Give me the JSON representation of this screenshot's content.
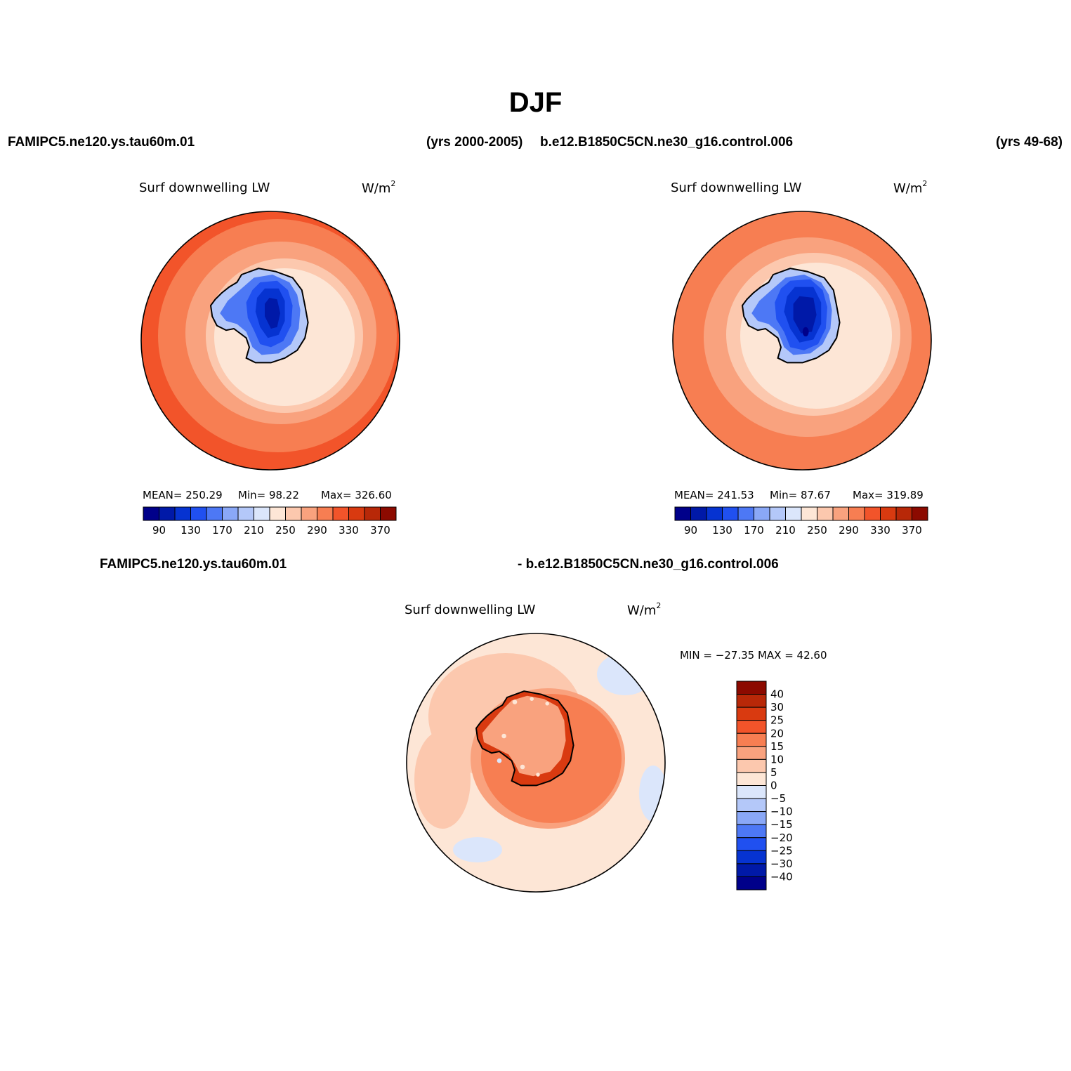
{
  "title": "DJF",
  "headers": {
    "case1": "FAMIPC5.ne120.ys.tau60m.01",
    "case1_years": "(yrs 2000-2005)",
    "case2": "b.e12.B1850C5CN.ne30_g16.control.006",
    "case2_years": "(yrs 49-68)",
    "diff_left": "FAMIPC5.ne120.ys.tau60m.01",
    "diff_right": "- b.e12.B1850C5CN.ne30_g16.control.006"
  },
  "panels": {
    "left": {
      "variable": "Surf downwelling LW",
      "units_base": "W/m",
      "units_exp": "2",
      "mean": "MEAN= 250.29",
      "min": "Min=  98.22",
      "max": "Max= 326.60"
    },
    "right": {
      "variable": "Surf downwelling LW",
      "units_base": "W/m",
      "units_exp": "2",
      "mean": "MEAN= 241.53",
      "min": "Min=  87.67",
      "max": "Max= 319.89"
    },
    "diff": {
      "variable": "Surf downwelling LW",
      "units_base": "W/m",
      "units_exp": "2",
      "minmax": "MIN = −27.35 MAX =  42.60"
    }
  },
  "colorbar_main": {
    "colors": [
      "#00008a",
      "#0019a8",
      "#0633d1",
      "#2050f0",
      "#4d78f5",
      "#8aa8f7",
      "#b4c8f9",
      "#dbe6fb",
      "#fde6d6",
      "#fcc8ae",
      "#f9a27e",
      "#f77e52",
      "#f2542a",
      "#d93a10",
      "#b82808",
      "#8c0a00"
    ],
    "labels": [
      "90",
      "130",
      "170",
      "210",
      "250",
      "290",
      "330",
      "370"
    ]
  },
  "colorbar_diff": {
    "colors": [
      "#8c0a00",
      "#b82808",
      "#d93a10",
      "#f2542a",
      "#f77e52",
      "#f9a27e",
      "#fcc8ae",
      "#fde6d6",
      "#dbe6fb",
      "#b4c8f9",
      "#8aa8f7",
      "#4d78f5",
      "#2050f0",
      "#0633d1",
      "#0019a8",
      "#00008a"
    ],
    "labels": [
      "40",
      "30",
      "25",
      "20",
      "15",
      "10",
      "5",
      "0",
      "−5",
      "−10",
      "−15",
      "−20",
      "−25",
      "−30",
      "−40"
    ]
  }
}
